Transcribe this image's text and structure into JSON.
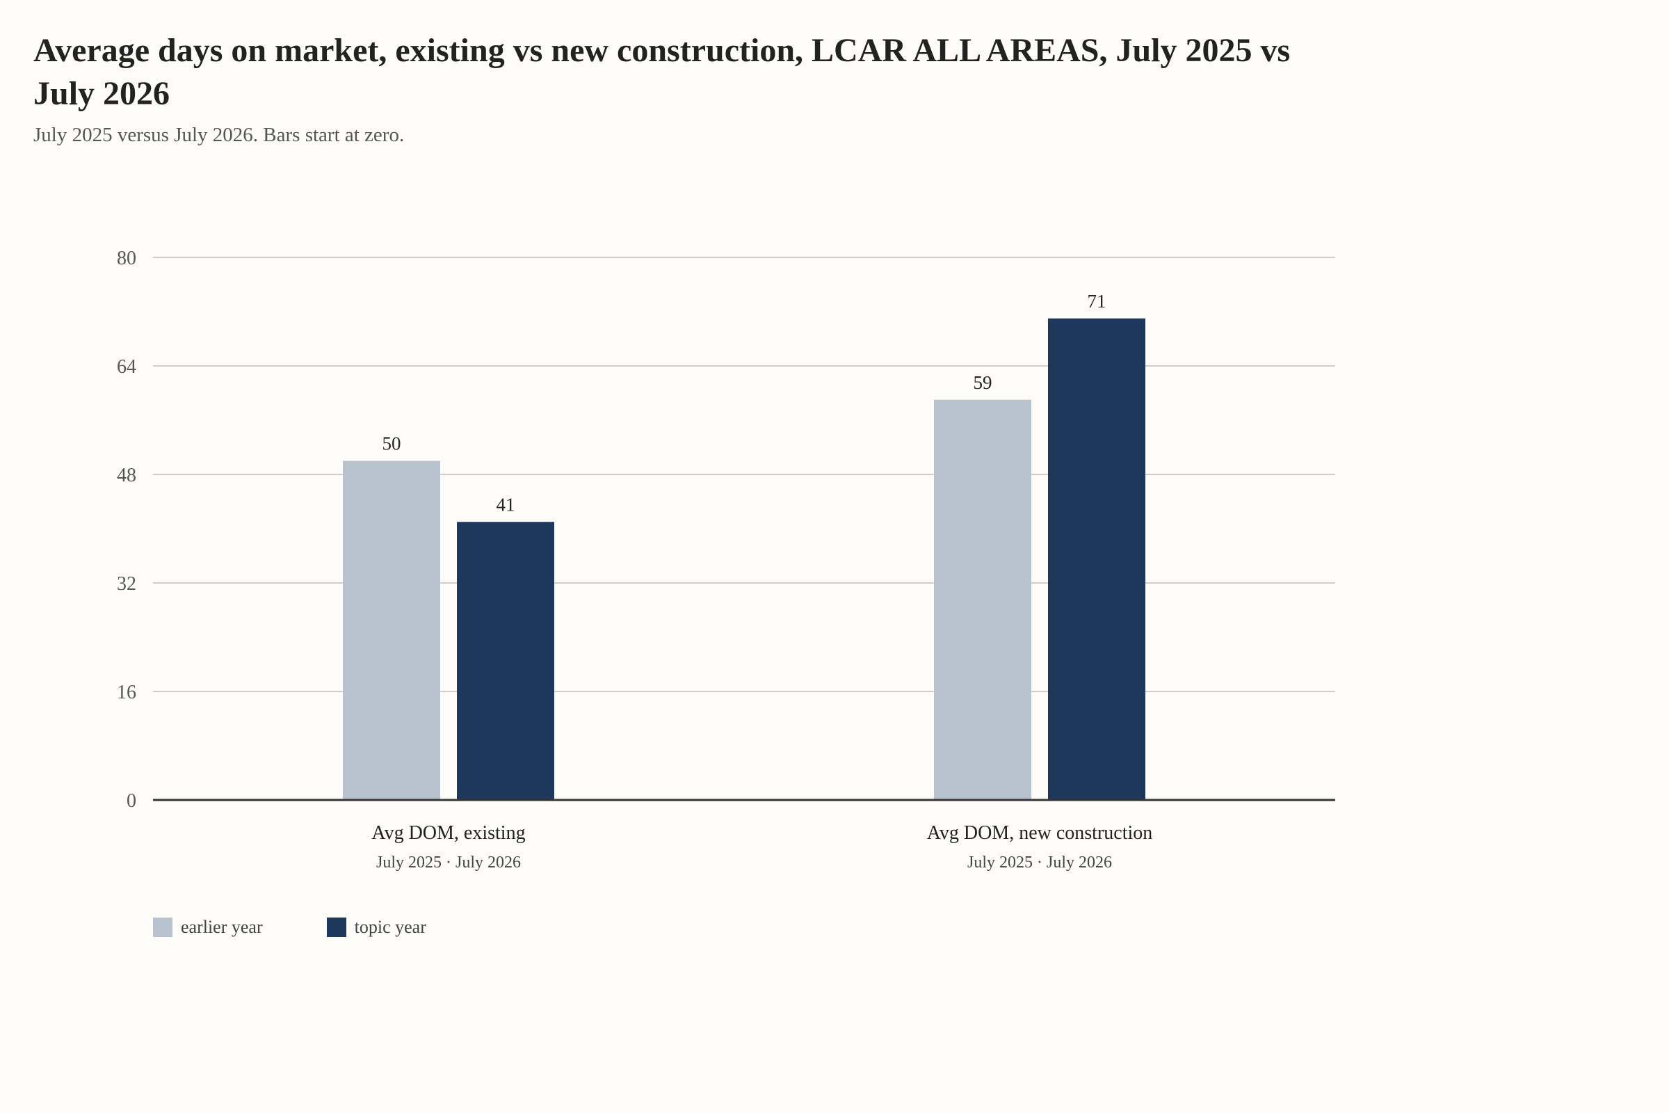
{
  "title": "Average days on market, existing vs new construction, LCAR ALL AREAS, July 2025 vs July 2026",
  "subtitle": "July 2025 versus July 2026. Bars start at zero.",
  "colors": {
    "background": "#fdfcf8",
    "earlier": "#b8c3cf",
    "topic": "#1e385c",
    "grid": "#cccccc",
    "axis": "#333333"
  },
  "chart_data": {
    "type": "bar",
    "categories": [
      "Avg DOM, existing",
      "Avg DOM, new construction"
    ],
    "category_sublabels": [
      "July 2025 · July 2026",
      "July 2025 · July 2026"
    ],
    "series": [
      {
        "name": "earlier year",
        "values": [
          50,
          59
        ]
      },
      {
        "name": "topic year",
        "values": [
          41,
          71
        ]
      }
    ],
    "data_labels": [
      [
        "50",
        "59"
      ],
      [
        "41",
        "71"
      ]
    ],
    "ylim": [
      0,
      80
    ],
    "yticks": [
      0,
      16,
      32,
      48,
      64,
      80
    ],
    "grid": true,
    "legend_position": "bottom-left"
  }
}
